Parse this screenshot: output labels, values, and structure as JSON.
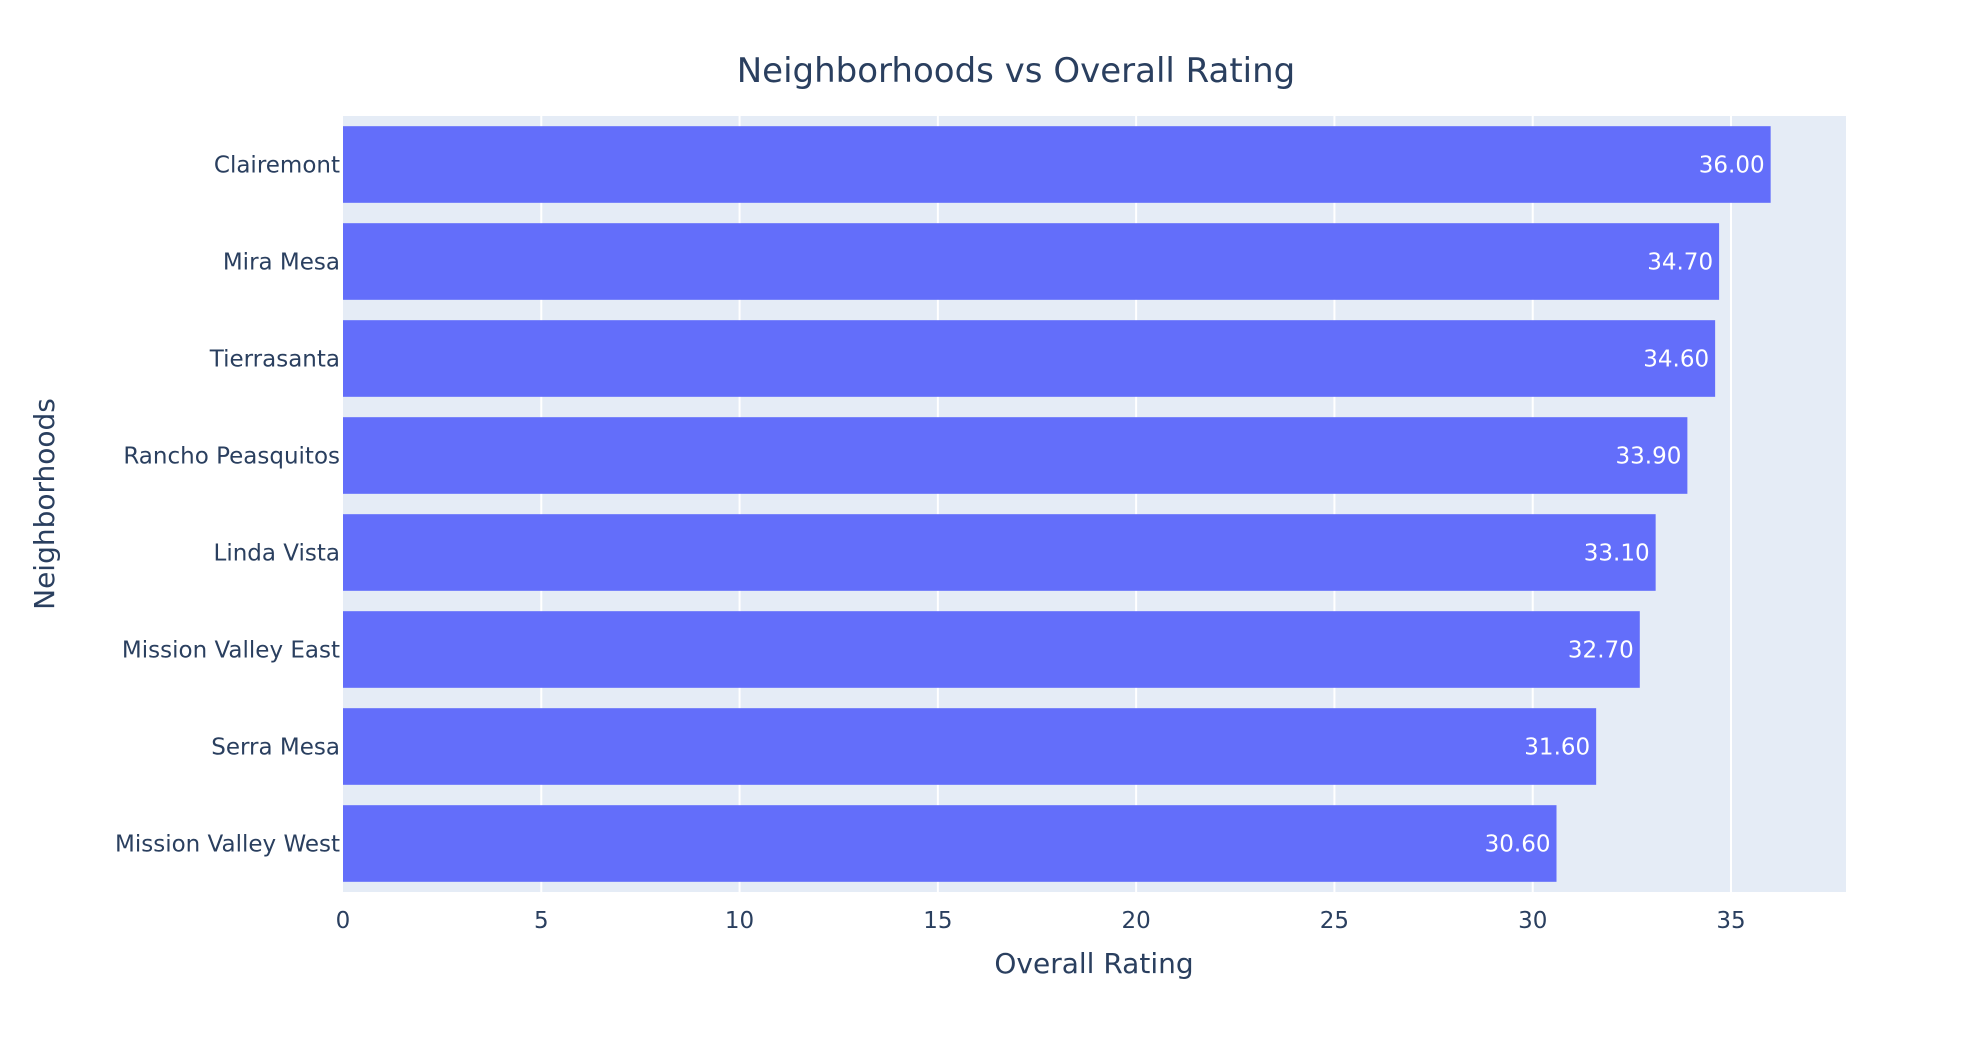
{
  "chart_data": {
    "type": "bar",
    "orientation": "horizontal",
    "title": "Neighborhoods vs Overall Rating",
    "xlabel": "Overall Rating",
    "ylabel": "Neighborhoods",
    "categories": [
      "Clairemont",
      "Mira Mesa",
      "Tierrasanta",
      "Rancho Peasquitos",
      "Linda Vista",
      "Mission Valley East",
      "Serra Mesa",
      "Mission Valley West"
    ],
    "values": [
      36.0,
      34.7,
      34.6,
      33.9,
      33.1,
      32.7,
      31.6,
      30.6
    ],
    "data_labels": [
      "36.00",
      "34.70",
      "34.60",
      "33.90",
      "33.10",
      "32.70",
      "31.60",
      "30.60"
    ],
    "xlim": [
      0,
      37.9
    ],
    "xticks": [
      0,
      5,
      10,
      15,
      20,
      25,
      30,
      35
    ],
    "xtick_labels": [
      "0",
      "5",
      "10",
      "15",
      "20",
      "25",
      "30",
      "35"
    ],
    "grid": true,
    "legend": "none",
    "colors": {
      "bar": "#636efa",
      "plot_bg": "#e5ecf6",
      "grid": "#ffffff",
      "text": "#2a3f5f",
      "label_text": "#ffffff"
    }
  }
}
